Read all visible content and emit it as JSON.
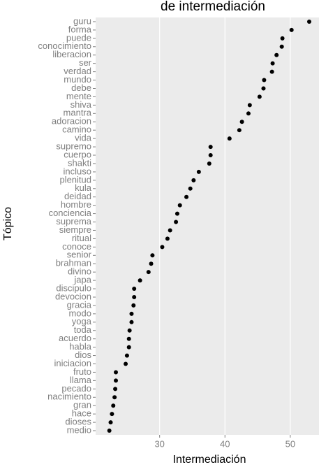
{
  "chart_data": {
    "type": "dot",
    "title": "de intermediación",
    "x_label": "Intermediación",
    "y_label": "Tópico",
    "categories": [
      "guru",
      "forma",
      "puede",
      "conocimiento",
      "liberacion",
      "ser",
      "verdad",
      "mundo",
      "debe",
      "mente",
      "shiva",
      "mantra",
      "adoracion",
      "camino",
      "vida",
      "supremo",
      "cuerpo",
      "shakti",
      "incluso",
      "plenitud",
      "kula",
      "deidad",
      "hombre",
      "conciencia",
      "suprema",
      "siempre",
      "ritual",
      "conoce",
      "senior",
      "brahman",
      "divino",
      "japa",
      "discipulo",
      "devocion",
      "gracia",
      "modo",
      "yoga",
      "toda",
      "acuerdo",
      "habla",
      "dios",
      "iniciacion",
      "fruto",
      "llama",
      "pecado",
      "nacimiento",
      "gran",
      "hace",
      "dioses",
      "medio"
    ],
    "values": [
      52.9,
      50.2,
      48.8,
      48.7,
      47.9,
      47.3,
      47.2,
      46.0,
      45.9,
      45.3,
      43.8,
      43.6,
      42.6,
      42.2,
      40.7,
      37.8,
      37.8,
      37.6,
      36.0,
      35.2,
      34.7,
      34.1,
      33.1,
      32.7,
      32.5,
      31.6,
      31.2,
      30.4,
      28.9,
      28.7,
      28.3,
      27.0,
      26.1,
      26.1,
      26.0,
      25.7,
      25.7,
      25.4,
      25.3,
      25.3,
      25.0,
      24.8,
      23.3,
      23.3,
      23.2,
      23.1,
      22.9,
      22.7,
      22.5,
      22.3
    ],
    "color": "#000000",
    "xlim": [
      20.2,
      54.4
    ],
    "xticks": [
      30,
      40,
      50
    ],
    "grid": true
  }
}
